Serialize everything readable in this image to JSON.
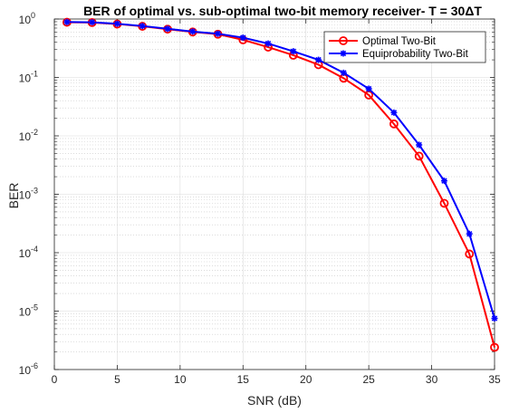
{
  "chart_data": {
    "type": "line",
    "title": "BER  of  optimal  vs.  sub-optimal  two-bit  memory  receiver-  T  =  30ΔT",
    "xlabel": "SNR (dB)",
    "ylabel": "BER",
    "xlim": [
      0,
      35
    ],
    "ylim_exponent": [
      -6,
      0
    ],
    "yscale": "log",
    "grid": true,
    "minor_grid": true,
    "legend_position": "top-right",
    "x_ticks": [
      0,
      5,
      10,
      15,
      20,
      25,
      30,
      35
    ],
    "y_tick_base": "10",
    "y_tick_exponents": [
      "0",
      "-1",
      "-2",
      "-3",
      "-4",
      "-5",
      "-6"
    ],
    "x": [
      1,
      3,
      5,
      7,
      9,
      11,
      13,
      15,
      17,
      19,
      21,
      23,
      25,
      27,
      29,
      31,
      33,
      35
    ],
    "series": [
      {
        "name": "Optimal Two-Bit",
        "color": "#ff0000",
        "marker": "circle",
        "values": [
          0.88,
          0.87,
          0.82,
          0.75,
          0.67,
          0.6,
          0.55,
          0.44,
          0.33,
          0.24,
          0.165,
          0.097,
          0.05,
          0.016,
          0.0045,
          0.0007,
          9.5e-05,
          2.4e-06
        ]
      },
      {
        "name": "Equiprobability Two-Bit",
        "color": "#0000ff",
        "marker": "star",
        "values": [
          0.89,
          0.88,
          0.83,
          0.76,
          0.68,
          0.61,
          0.56,
          0.48,
          0.38,
          0.28,
          0.2,
          0.12,
          0.064,
          0.025,
          0.007,
          0.0017,
          0.00021,
          7.5e-06
        ]
      }
    ]
  }
}
